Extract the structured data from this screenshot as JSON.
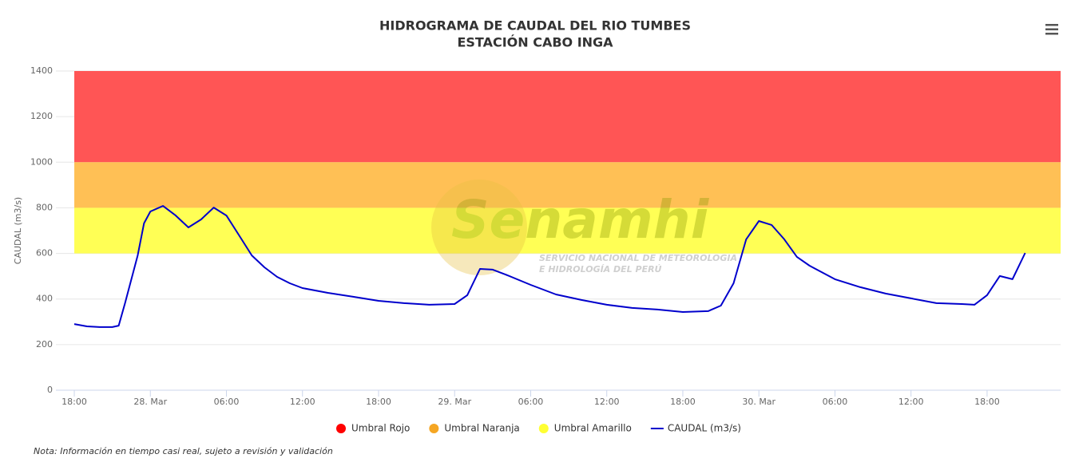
{
  "chart_data": {
    "type": "line",
    "title": "HIDROGRAMA DE CAUDAL DEL RIO TUMBES",
    "subtitle": "ESTACIÓN CABO INGA",
    "y_label": "CAUDAL (m3/s)",
    "note": "Nota: Información en tiempo casi real, sujeto a revisión y validación",
    "watermark": {
      "brand": "Senamhi",
      "line1": "SERVICIO NACIONAL DE METEOROLOGIA",
      "line2": "E HIDROLOGÍA DEL PERÚ"
    },
    "ylim": [
      0,
      1400
    ],
    "yticks": [
      0,
      200,
      400,
      600,
      800,
      1000,
      1200,
      1400
    ],
    "xlim": [
      -1.45,
      77.8
    ],
    "xticks": [
      {
        "value": 0,
        "label": "18:00"
      },
      {
        "value": 6,
        "label": "28. Mar"
      },
      {
        "value": 12,
        "label": "06:00"
      },
      {
        "value": 18,
        "label": "12:00"
      },
      {
        "value": 24,
        "label": "18:00"
      },
      {
        "value": 30,
        "label": "29. Mar"
      },
      {
        "value": 36,
        "label": "06:00"
      },
      {
        "value": 42,
        "label": "12:00"
      },
      {
        "value": 48,
        "label": "18:00"
      },
      {
        "value": 54,
        "label": "30. Mar"
      },
      {
        "value": 60,
        "label": "06:00"
      },
      {
        "value": 66,
        "label": "12:00"
      },
      {
        "value": 72,
        "label": "18:00"
      }
    ],
    "grid": true,
    "bands": [
      {
        "name": "Umbral Rojo",
        "color": "#ff0000",
        "fill": "#ff5555",
        "from": 1000,
        "to": 1400
      },
      {
        "name": "Umbral Naranja",
        "color": "#f5a623",
        "fill": "#ffc055",
        "from": 800,
        "to": 1000
      },
      {
        "name": "Umbral Amarillo",
        "color": "#ffff33",
        "fill": "#ffff55",
        "from": 600,
        "to": 800
      }
    ],
    "series": [
      {
        "name": "CAUDAL (m3/s)",
        "color": "#0000cc",
        "x": [
          0,
          1,
          2,
          3,
          3.5,
          4,
          5,
          5.5,
          6,
          7,
          8,
          9,
          10,
          11,
          12,
          13,
          14,
          15,
          16,
          17,
          18,
          20,
          22,
          24,
          26,
          28,
          30,
          31,
          32,
          33,
          34,
          36,
          38,
          40,
          42,
          44,
          46,
          48,
          50,
          51,
          52,
          53,
          54,
          55,
          56,
          57,
          58,
          60,
          62,
          64,
          66,
          68,
          70,
          71,
          72,
          73,
          74,
          75
        ],
        "values": [
          290,
          280,
          277,
          277,
          283,
          381,
          591,
          732,
          784,
          808,
          766,
          714,
          749,
          801,
          766,
          679,
          591,
          539,
          497,
          469,
          448,
          427,
          410,
          392,
          382,
          375,
          378,
          417,
          532,
          529,
          508,
          462,
          420,
          396,
          375,
          361,
          354,
          343,
          347,
          371,
          469,
          662,
          742,
          725,
          662,
          585,
          546,
          487,
          452,
          424,
          403,
          382,
          378,
          375,
          417,
          501,
          487,
          602
        ]
      }
    ]
  }
}
